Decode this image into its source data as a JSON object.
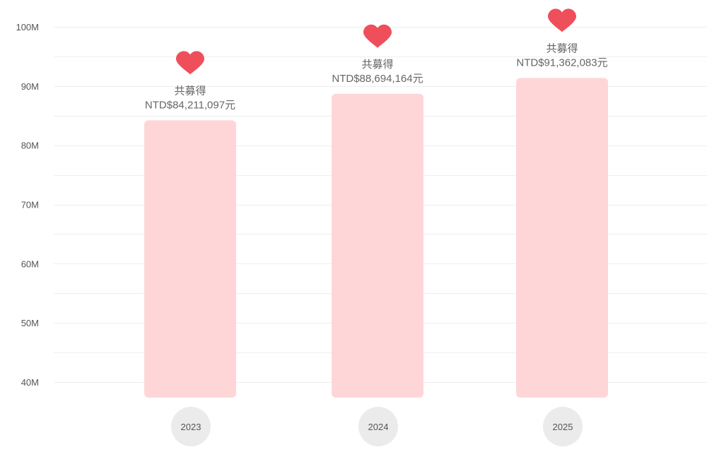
{
  "chart_data": {
    "type": "bar",
    "categories": [
      "2023",
      "2024",
      "2025"
    ],
    "values": [
      84211097,
      88694164,
      91362083
    ],
    "value_label_prefix": "共募得",
    "value_labels": [
      "NTD$84,211,097元",
      "NTD$88,694,164元",
      "NTD$91,362,083元"
    ],
    "y_ticks": [
      {
        "value": 40000000,
        "label": "40M"
      },
      {
        "value": 50000000,
        "label": "50M"
      },
      {
        "value": 60000000,
        "label": "60M"
      },
      {
        "value": 70000000,
        "label": "70M"
      },
      {
        "value": 80000000,
        "label": "80M"
      },
      {
        "value": 90000000,
        "label": "90M"
      },
      {
        "value": 100000000,
        "label": "100M"
      }
    ],
    "ylim": [
      40000000,
      100000000
    ],
    "grid": true,
    "legend": "none",
    "title": "",
    "xlabel": "",
    "ylabel": "",
    "bar_color": "#ffd6d8",
    "marker_icon": "heart-icon",
    "marker_color": "#ef4f5a",
    "category_badge_color": "#ebebeb"
  }
}
